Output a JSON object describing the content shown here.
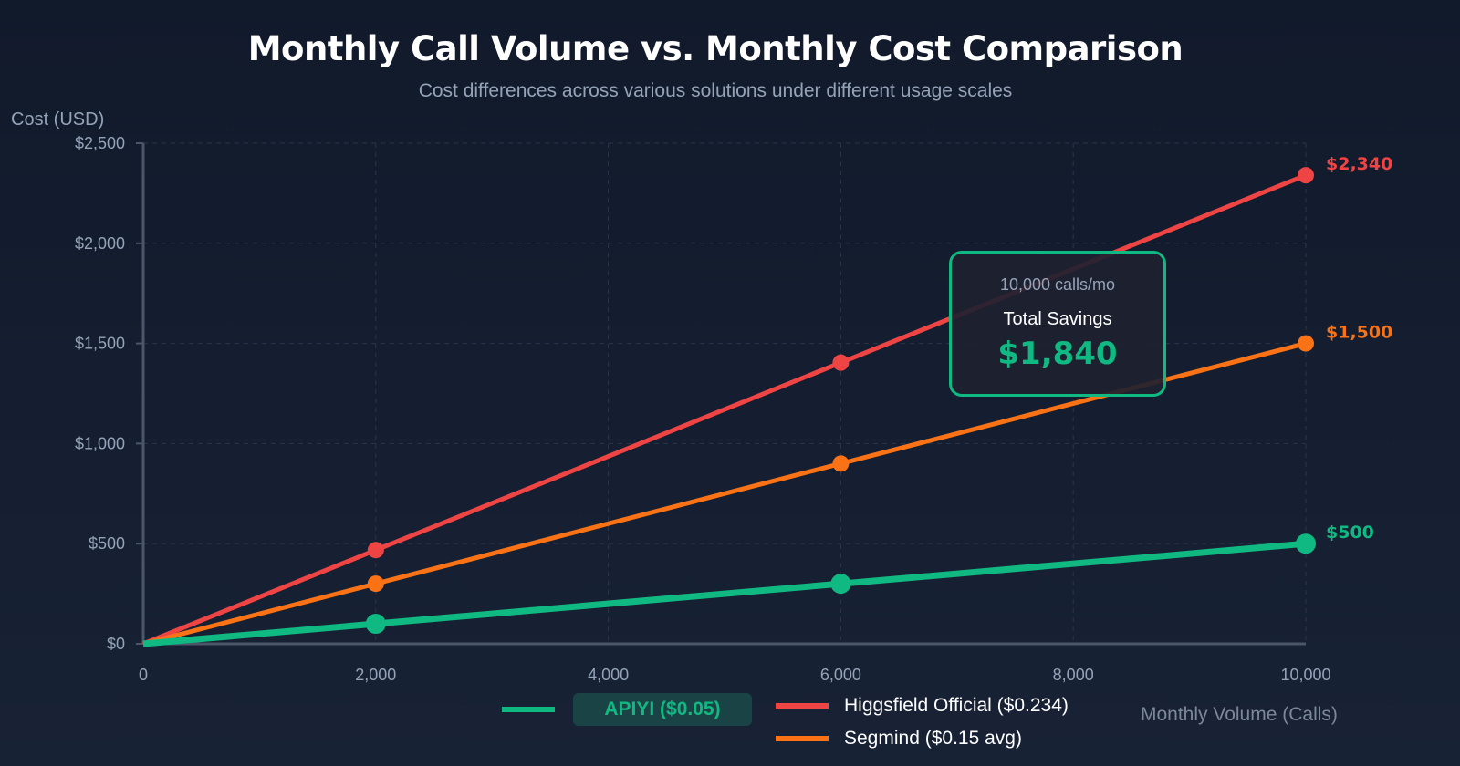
{
  "chart_data": {
    "type": "line",
    "title": "Monthly Call Volume vs. Monthly Cost Comparison",
    "subtitle": "Cost differences across various solutions under different usage scales",
    "xlabel": "Monthly Volume (Calls)",
    "ylabel": "Cost (USD)",
    "xlim": [
      0,
      10000
    ],
    "ylim": [
      0,
      2500
    ],
    "x_ticks": [
      "0",
      "2,000",
      "4,000",
      "6,000",
      "8,000",
      "10,000"
    ],
    "x_tick_values": [
      0,
      2000,
      4000,
      6000,
      8000,
      10000
    ],
    "y_ticks": [
      "$0",
      "$500",
      "$1,000",
      "$1,500",
      "$2,000",
      "$2,500"
    ],
    "y_tick_values": [
      0,
      500,
      1000,
      1500,
      2000,
      2500
    ],
    "grid": true,
    "x": [
      0,
      2000,
      6000,
      10000
    ],
    "series": [
      {
        "name": "Higgsfield Official ($0.234)",
        "values": [
          0,
          468,
          1404,
          2340
        ],
        "color": "#ef4444",
        "end_label": "$2,340"
      },
      {
        "name": "Segmind ($0.15 avg)",
        "values": [
          0,
          300,
          900,
          1500
        ],
        "color": "#f97316",
        "end_label": "$1,500"
      },
      {
        "name": "APIYI ($0.05)",
        "values": [
          0,
          100,
          300,
          500
        ],
        "color": "#10b981",
        "end_label": "$500"
      }
    ],
    "annotation": {
      "calls": "10,000 calls/mo",
      "label": "Total Savings",
      "value": "$1,840"
    }
  }
}
